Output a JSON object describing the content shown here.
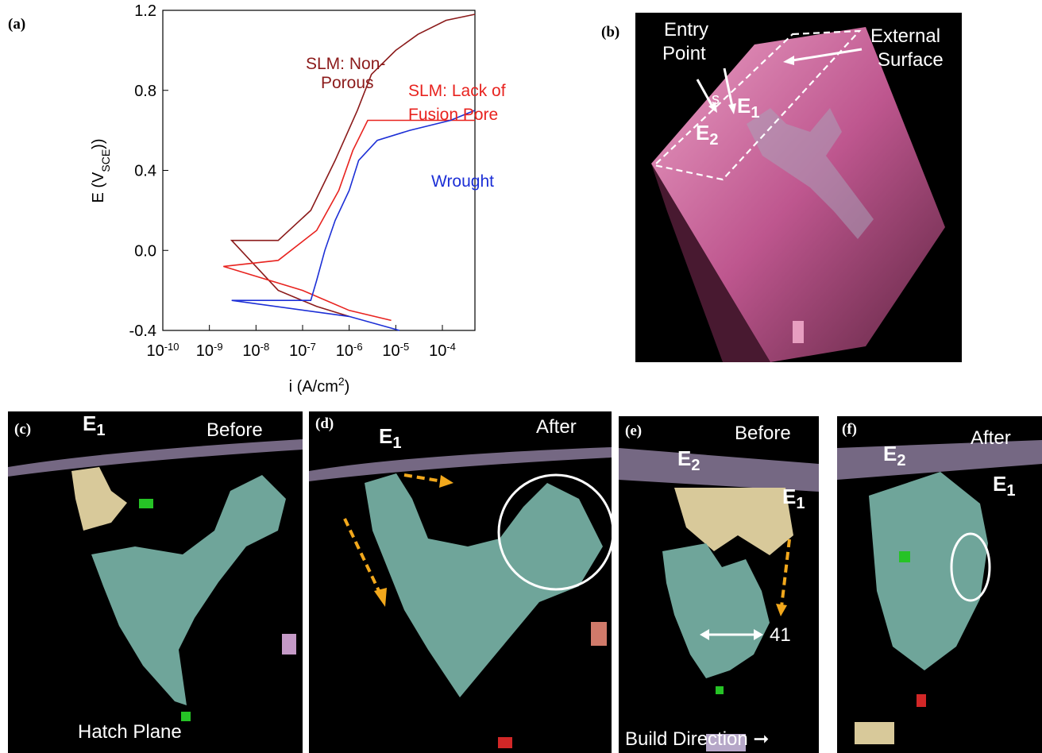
{
  "panels": {
    "a": "(a)",
    "b": "(b)",
    "c": "(c)",
    "d": "(d)",
    "e": "(e)",
    "f": "(f)"
  },
  "chart_data": {
    "type": "line",
    "title": "",
    "xlabel": "i (A/cm²)",
    "ylabel": "E (V_SCE)",
    "x_scale": "log",
    "xlim": [
      1e-10,
      0.0005
    ],
    "ylim": [
      -0.4,
      1.2
    ],
    "x_ticks": [
      "10-10",
      "10-9",
      "10-8",
      "10-7",
      "10-6",
      "10-5",
      "10-4"
    ],
    "y_ticks": [
      "-0.4",
      "0.0",
      "0.4",
      "0.8",
      "1.2"
    ],
    "series": [
      {
        "name": "SLM: Non-Porous",
        "color": "#8b1a1a",
        "points": [
          [
            1e-06,
            -0.33
          ],
          [
            2e-07,
            -0.28
          ],
          [
            3e-08,
            -0.2
          ],
          [
            3e-09,
            0.05
          ],
          [
            3e-08,
            0.05
          ],
          [
            1.5e-07,
            0.2
          ],
          [
            5e-07,
            0.45
          ],
          [
            1.5e-06,
            0.7
          ],
          [
            3e-06,
            0.88
          ],
          [
            1e-05,
            1.0
          ],
          [
            3e-05,
            1.08
          ],
          [
            0.00012,
            1.15
          ],
          [
            0.0005,
            1.18
          ]
        ]
      },
      {
        "name": "SLM: Lack of Fusion Pore",
        "color": "#e8231f",
        "points": [
          [
            8e-06,
            -0.35
          ],
          [
            1e-06,
            -0.3
          ],
          [
            1e-07,
            -0.2
          ],
          [
            2e-09,
            -0.08
          ],
          [
            3e-08,
            -0.05
          ],
          [
            2e-07,
            0.1
          ],
          [
            6e-07,
            0.3
          ],
          [
            1.2e-06,
            0.5
          ],
          [
            2.5e-06,
            0.65
          ],
          [
            1e-05,
            0.65
          ],
          [
            0.0005,
            0.65
          ]
        ]
      },
      {
        "name": "Wrought",
        "color": "#1c2fd6",
        "points": [
          [
            1.2e-05,
            -0.4
          ],
          [
            1e-06,
            -0.33
          ],
          [
            3e-09,
            -0.25
          ],
          [
            1.5e-07,
            -0.25
          ],
          [
            2e-07,
            -0.15
          ],
          [
            3e-07,
            0.0
          ],
          [
            5e-07,
            0.15
          ],
          [
            1e-06,
            0.3
          ],
          [
            1.6e-06,
            0.45
          ],
          [
            4e-06,
            0.55
          ],
          [
            2e-05,
            0.6
          ],
          [
            0.00015,
            0.65
          ],
          [
            0.0005,
            0.7
          ]
        ]
      }
    ]
  },
  "b": {
    "entry_point_1": "Entry",
    "entry_point_2": "Point",
    "external_1": "External",
    "external_2": "Surface",
    "s": "s",
    "e1": "E",
    "e1_sub": "1",
    "e2": "E",
    "e2_sub": "2"
  },
  "c": {
    "e1": "E",
    "e1_sub": "1",
    "before": "Before",
    "hatch": "Hatch Plane"
  },
  "d": {
    "e1": "E",
    "e1_sub": "1",
    "after": "After"
  },
  "e": {
    "e2": "E",
    "e2_sub": "2",
    "e1": "E",
    "e1_sub": "1",
    "before": "Before",
    "num": "41",
    "build": "Build Direction"
  },
  "f": {
    "e2": "E",
    "e2_sub": "2",
    "e1": "E",
    "e1_sub": "1",
    "after": "After"
  },
  "colors": {
    "teal": "#6fa59a",
    "tan": "#d8c99a",
    "pink": "#d96fa3",
    "arrow_orange": "#f2a81c"
  }
}
